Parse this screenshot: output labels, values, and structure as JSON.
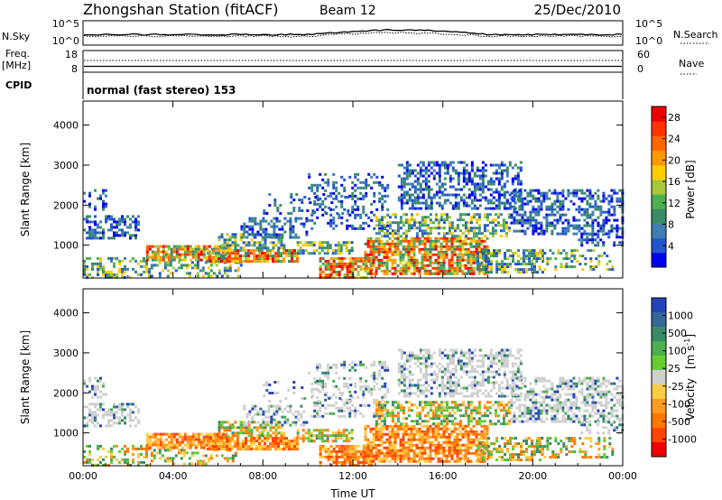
{
  "header": {
    "title": "Zhongshan Station (fitACF)",
    "beam": "Beam 12",
    "date": "25/Dec/2010"
  },
  "top_panel": {
    "left_label": "N.Sky",
    "right_label": "N.Search",
    "left_ticks": [
      "10^5",
      "10^0"
    ],
    "right_ticks": [
      "10^5",
      "10^0"
    ]
  },
  "freq_panel": {
    "left_label_1": "Freq.",
    "left_label_2": "[MHz]",
    "left_ticks": [
      "18",
      "8"
    ],
    "right_ticks": [
      "60",
      "0"
    ],
    "right_label": "Nave"
  },
  "cpid_panel": {
    "label": "CPID",
    "text": "normal (fast stereo) 153"
  },
  "colors": {
    "power_scale": [
      "#0000ee",
      "#2255cc",
      "#3f7fb0",
      "#3a8a66",
      "#4caf50",
      "#a8c83a",
      "#ffcc00",
      "#ff9900",
      "#ff6600",
      "#ff3300",
      "#ee0000"
    ],
    "velocity_scale": [
      "#2244bb",
      "#336699",
      "#3a8a66",
      "#4caf50",
      "#66cc33",
      "#cfcfcf",
      "#ffcc44",
      "#ff9922",
      "#ff7700",
      "#ff4400",
      "#ee0000"
    ]
  },
  "chart_data": [
    {
      "type": "heatmap",
      "name": "power",
      "ylabel": "Slant Range [km]",
      "yticks": [
        1000,
        2000,
        3000,
        4000
      ],
      "ylim": [
        180,
        4600
      ],
      "xticks": [
        "00:00",
        "04:00",
        "08:00",
        "12:00",
        "16:00",
        "20:00",
        "00:00"
      ],
      "xlim_hours": [
        0,
        24
      ],
      "colorbar": {
        "label": "Power [dB]",
        "ticks": [
          "4",
          "8",
          "12",
          "16",
          "20",
          "24",
          "28"
        ],
        "range": [
          0,
          30
        ]
      }
    },
    {
      "type": "heatmap",
      "name": "velocity",
      "ylabel": "Slant Range [km]",
      "yticks": [
        1000,
        2000,
        3000,
        4000
      ],
      "ylim": [
        180,
        4600
      ],
      "xticks": [
        "00:00",
        "04:00",
        "08:00",
        "12:00",
        "16:00",
        "20:00",
        "00:00"
      ],
      "xlim_hours": [
        0,
        24
      ],
      "xlabel": "Time UT",
      "colorbar": {
        "label": "Velocity",
        "unit": "[m s",
        "unit_exp": "-1",
        "unit_close": "]",
        "ticks": [
          "1000",
          "500",
          "100",
          "25",
          "-25",
          "-100",
          "-500",
          "-1000"
        ]
      }
    }
  ]
}
